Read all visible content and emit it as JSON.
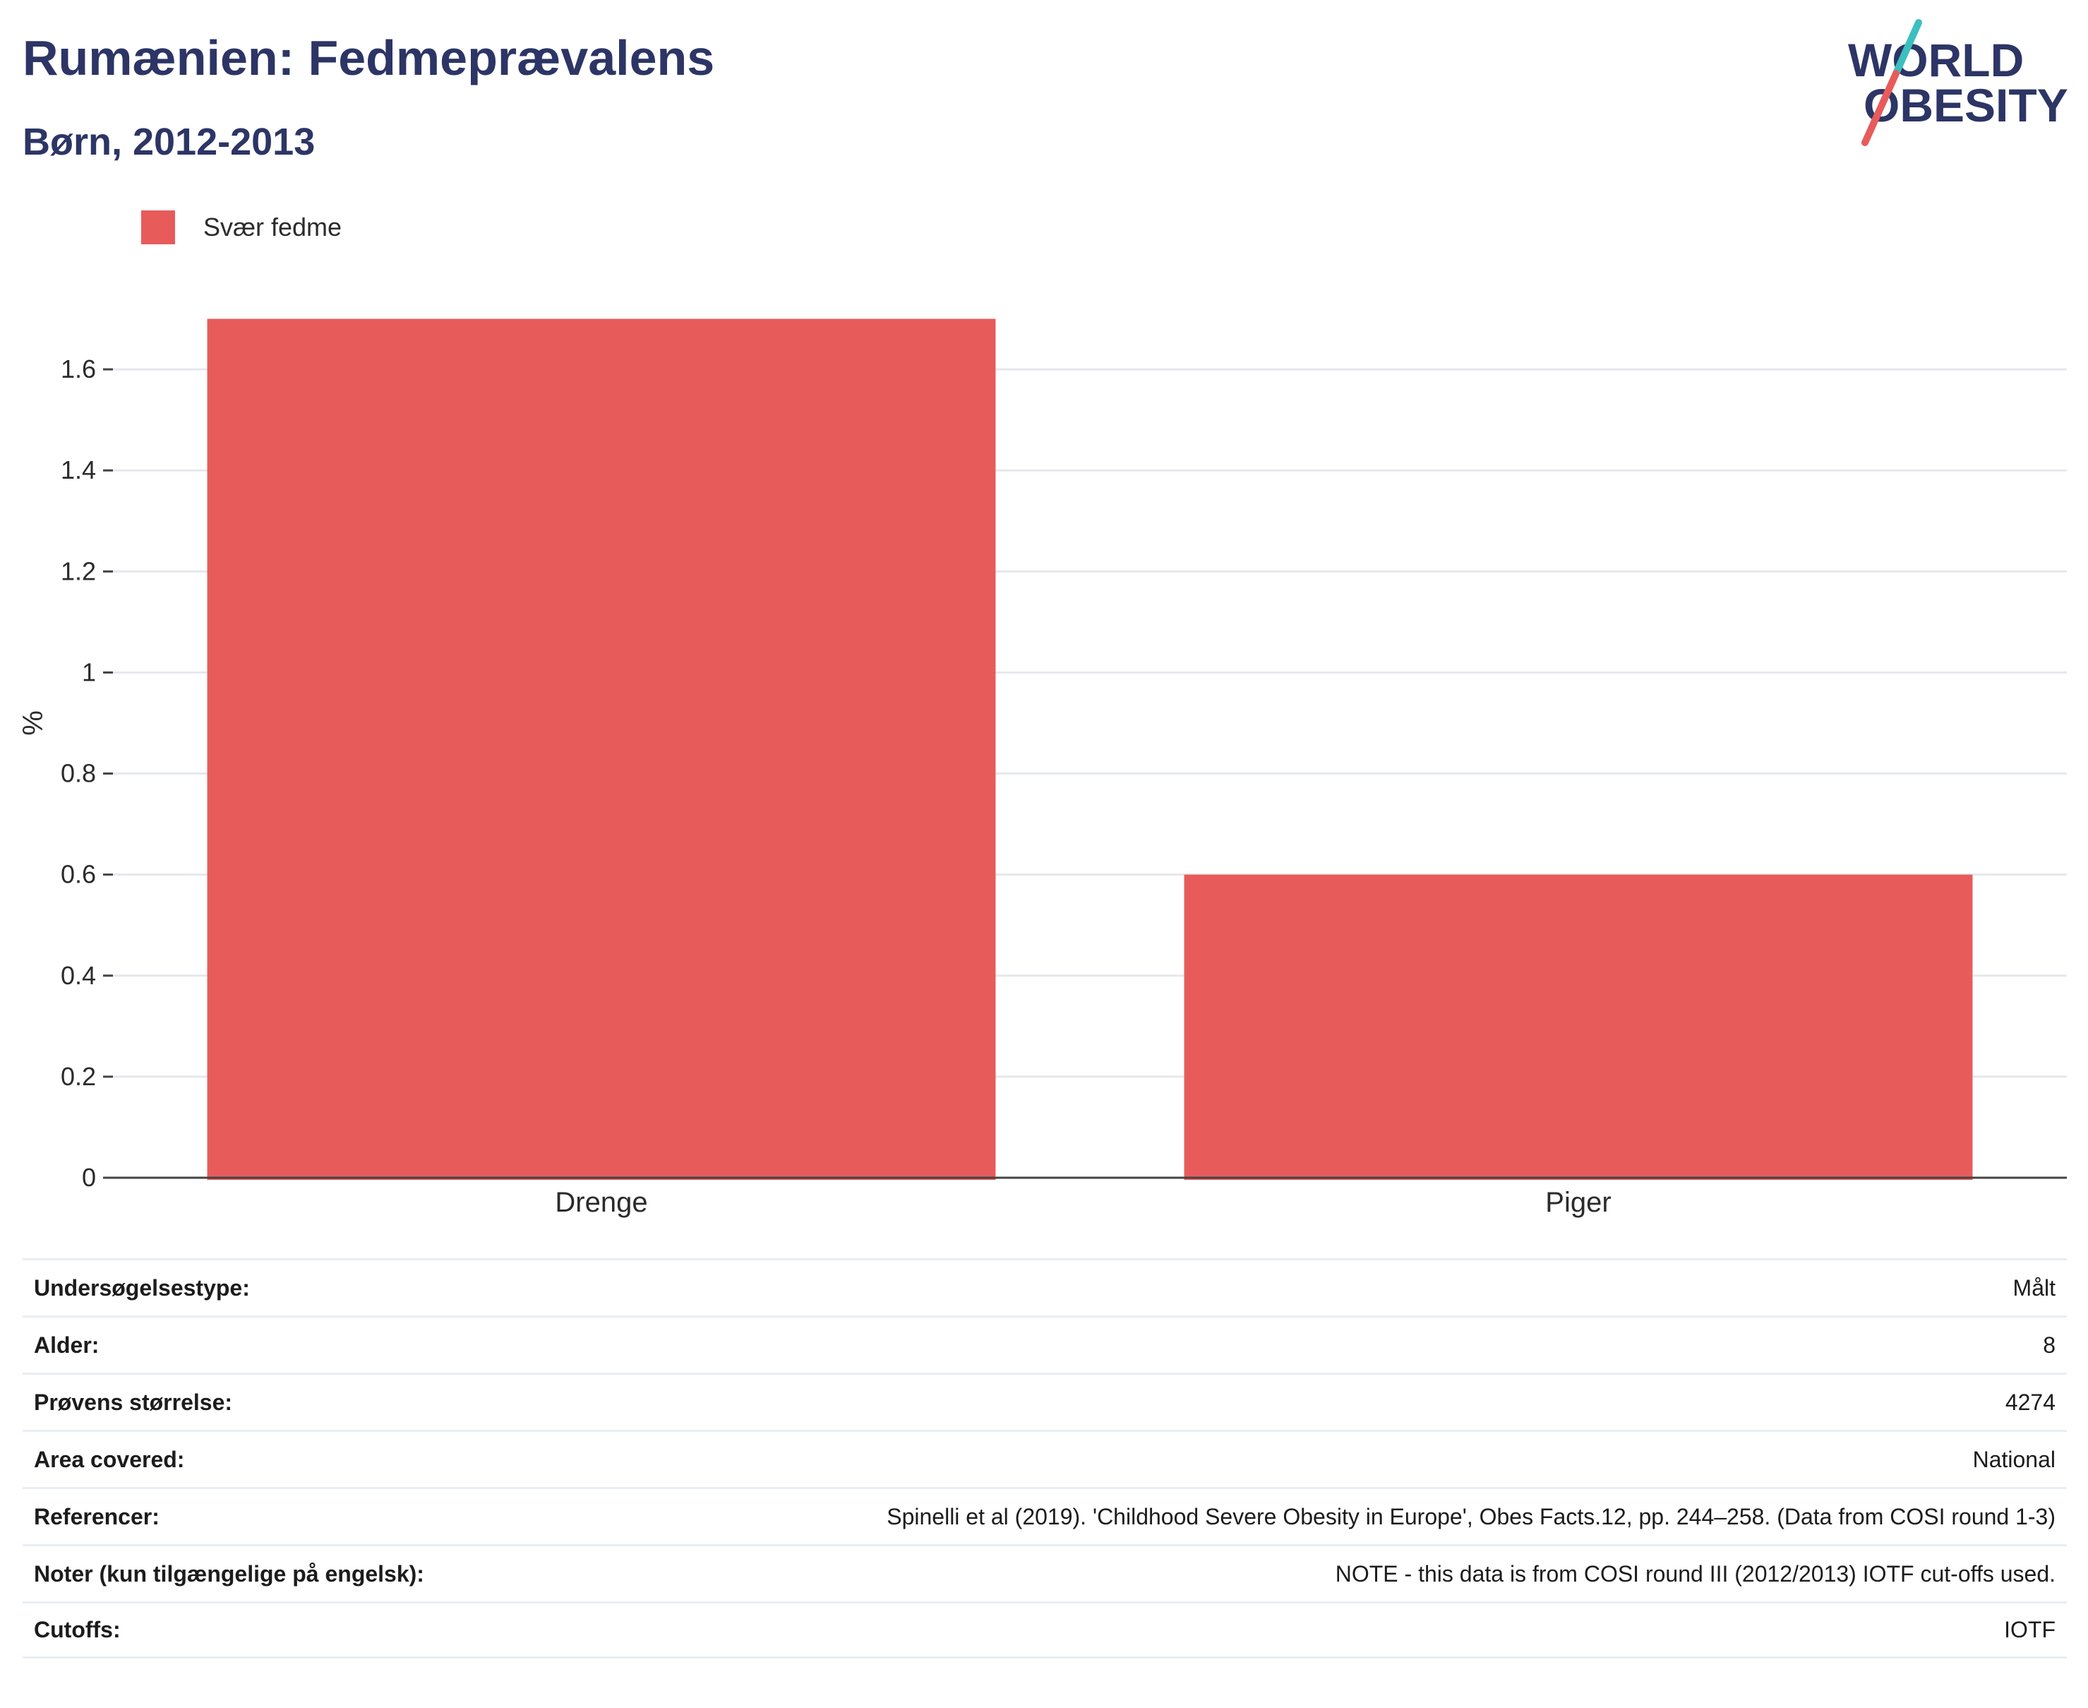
{
  "title": "Rumænien: Fedmeprævalens",
  "subtitle": "Børn, 2012-2013",
  "logo": {
    "line1": "WORLD",
    "line2": "OBESITY",
    "text_color": "#2c3565",
    "slash_top_color": "#3bbfbf",
    "slash_bottom_color": "#e85b5b"
  },
  "colors": {
    "bar": "#e85b5b",
    "title": "#2c3565",
    "grid": "#e6e8ee",
    "axis": "#444444"
  },
  "chart_data": {
    "type": "bar",
    "categories": [
      "Drenge",
      "Piger"
    ],
    "series": [
      {
        "name": "Svær fedme",
        "values": [
          1.7,
          0.6
        ]
      }
    ],
    "ylabel": "%",
    "xlabel": "",
    "ylim": [
      0,
      1.8
    ],
    "yticks": [
      0,
      0.2,
      0.4,
      0.6,
      0.8,
      1,
      1.2,
      1.4,
      1.6
    ],
    "ytick_labels": [
      "0",
      "0.2",
      "0.4",
      "0.6",
      "0.8",
      "1",
      "1.2",
      "1.4",
      "1.6"
    ],
    "grid": true,
    "legend_position": "top-left"
  },
  "info_rows": [
    {
      "label": "Undersøgelsestype:",
      "value": "Målt"
    },
    {
      "label": "Alder:",
      "value": "8"
    },
    {
      "label": "Prøvens størrelse:",
      "value": "4274"
    },
    {
      "label": "Area covered:",
      "value": "National"
    },
    {
      "label": "Referencer:",
      "value": "Spinelli et al (2019). 'Childhood Severe Obesity in Europe', Obes Facts.12, pp. 244–258. (Data from COSI round 1-3)"
    },
    {
      "label": "Noter (kun tilgængelige på engelsk):",
      "value": "NOTE - this data is from COSI round III (2012/2013) IOTF cut-offs used."
    },
    {
      "label": "Cutoffs:",
      "value": "IOTF"
    }
  ]
}
